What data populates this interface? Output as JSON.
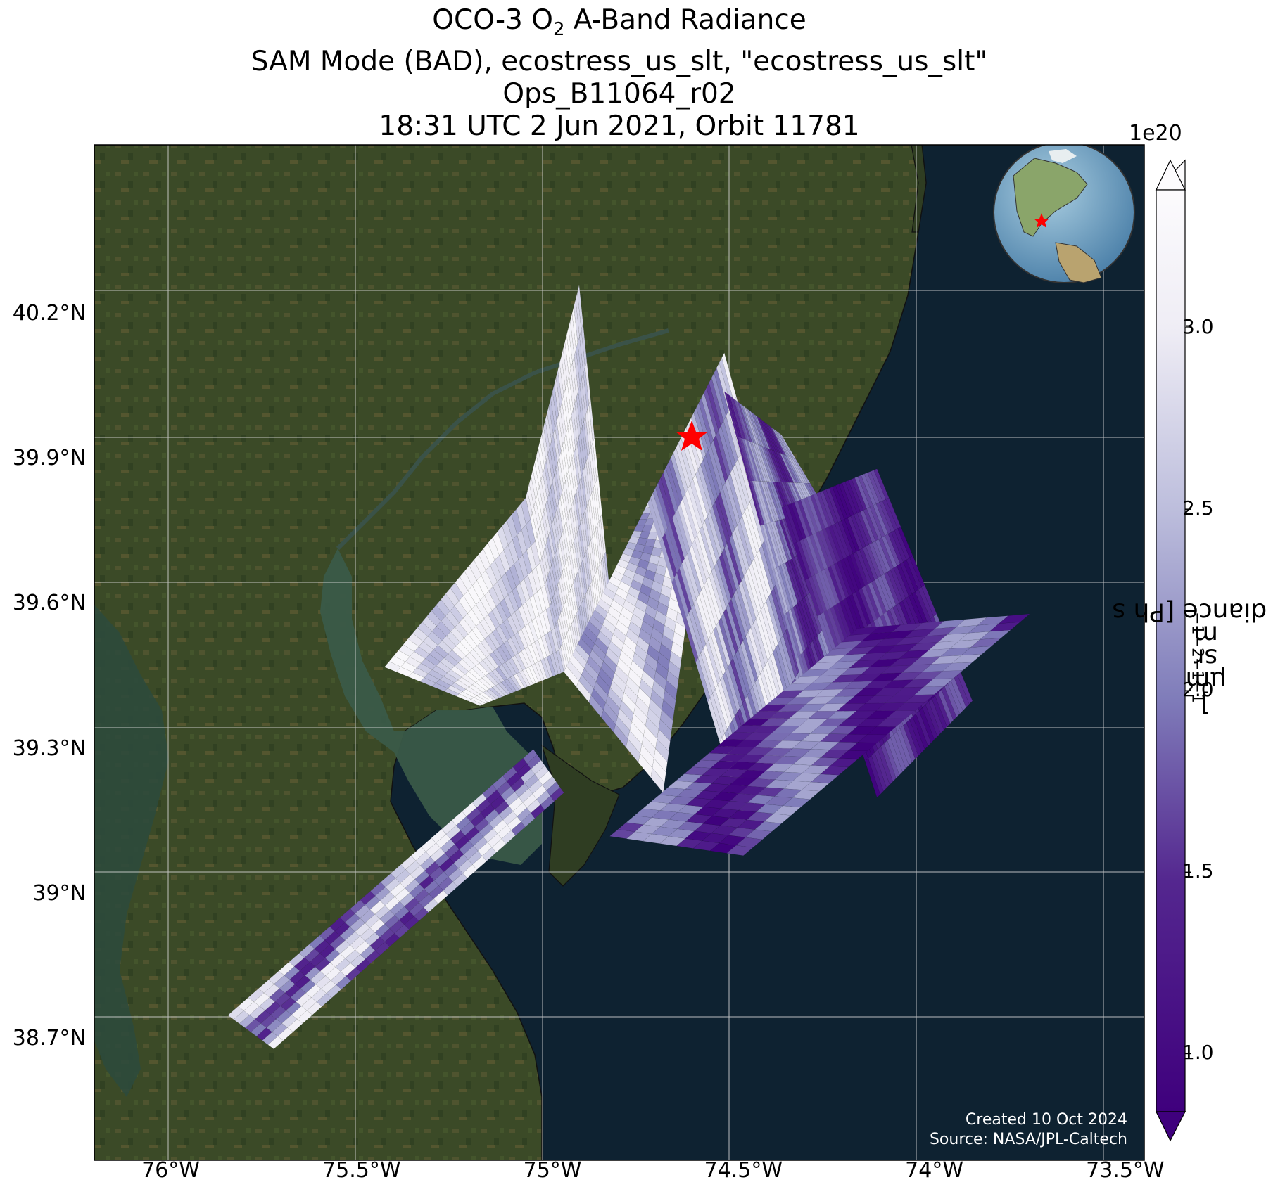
{
  "title": {
    "line1_pre": "OCO-3 O",
    "line1_sub": "2",
    "line1_post": " A-Band Radiance",
    "line2": "SAM Mode (BAD), ecostress_us_slt, \"ecostress_us_slt\"",
    "line3": "Ops_B11064_r02",
    "line4": "18:31 UTC 2 Jun 2021, Orbit 11781"
  },
  "map": {
    "lon_range": [
      -76.2,
      -73.45
    ],
    "lat_range": [
      38.45,
      40.55
    ],
    "lat_ticks": [
      {
        "value": 40.2,
        "label": "40.2°N"
      },
      {
        "value": 39.9,
        "label": "39.9°N"
      },
      {
        "value": 39.6,
        "label": "39.6°N"
      },
      {
        "value": 39.3,
        "label": "39.3°N"
      },
      {
        "value": 39.0,
        "label": "39°N"
      },
      {
        "value": 38.7,
        "label": "38.7°N"
      }
    ],
    "lon_ticks": [
      {
        "value": -76.0,
        "label": "76°W"
      },
      {
        "value": -75.5,
        "label": "75.5°W"
      },
      {
        "value": -75.0,
        "label": "75°W"
      },
      {
        "value": -74.5,
        "label": "74.5°W"
      },
      {
        "value": -74.0,
        "label": "74°W"
      },
      {
        "value": -73.5,
        "label": "73.5°W"
      }
    ],
    "target": {
      "lon": -74.6,
      "lat": 39.91,
      "marker": "red-star"
    },
    "grid": true,
    "inset_globe": "top-right"
  },
  "colorbar": {
    "exponent_label": "1e20",
    "ticks": [
      {
        "value": 1.0,
        "label": "1.0"
      },
      {
        "value": 1.5,
        "label": "1.5"
      },
      {
        "value": 2.0,
        "label": "2.0"
      },
      {
        "value": 2.5,
        "label": "2.5"
      },
      {
        "value": 3.0,
        "label": "3.0"
      }
    ],
    "range": [
      0.84,
      3.38
    ],
    "extend": "both",
    "colormap": "Purples_r",
    "label_pre": "Radiance [Ph s",
    "label_sup1": "−1",
    "label_mid1": " m",
    "label_sup2": "−2",
    "label_mid2": " sr",
    "label_sup3": "−1",
    "label_mid3": "μm",
    "label_sup4": "−1",
    "label_post": "]"
  },
  "credits": {
    "created": "Created 10 Oct 2024",
    "source": "Source: NASA/JPL-Caltech"
  },
  "colors": {
    "ocean": "#0e2231",
    "land": "#3b4a27",
    "bay": "#3a5a48",
    "low": "#3f007d",
    "high": "#fcfbfd",
    "target_star": "#ff0000"
  },
  "chart_data": {
    "type": "heatmap",
    "units": "Radiance [Ph s−1 m−2 sr−1μm−1] ×1e20",
    "swaths": [
      {
        "corners": [
          [
            -75.07,
            39.82
          ],
          [
            -74.93,
            40.26
          ],
          [
            -74.85,
            39.63
          ],
          [
            -74.97,
            39.46
          ]
        ],
        "value_range": [
          2.5,
          3.3
        ]
      },
      {
        "corners": [
          [
            -75.44,
            39.47
          ],
          [
            -75.07,
            39.82
          ],
          [
            -74.97,
            39.46
          ],
          [
            -75.19,
            39.39
          ]
        ],
        "value_range": [
          2.4,
          3.3
        ]
      },
      {
        "corners": [
          [
            -74.97,
            39.46
          ],
          [
            -74.75,
            39.81
          ],
          [
            -74.6,
            39.85
          ],
          [
            -74.71,
            39.21
          ]
        ],
        "value_range": [
          2.0,
          3.2
        ]
      },
      {
        "corners": [
          [
            -74.75,
            39.81
          ],
          [
            -74.55,
            40.12
          ],
          [
            -74.3,
            39.4
          ],
          [
            -74.5,
            39.15
          ]
        ],
        "value_range": [
          1.6,
          3.1
        ]
      },
      {
        "corners": [
          [
            -74.55,
            40.04
          ],
          [
            -74.4,
            39.95
          ],
          [
            -74.1,
            39.55
          ],
          [
            -74.3,
            39.3
          ]
        ],
        "value_range": [
          1.2,
          2.4
        ]
      },
      {
        "corners": [
          [
            -74.4,
            39.8
          ],
          [
            -74.15,
            39.88
          ],
          [
            -73.9,
            39.4
          ],
          [
            -74.15,
            39.2
          ]
        ],
        "value_range": [
          0.9,
          1.8
        ]
      },
      {
        "corners": [
          [
            -74.85,
            39.12
          ],
          [
            -74.2,
            39.55
          ],
          [
            -73.75,
            39.58
          ],
          [
            -74.5,
            39.08
          ]
        ],
        "value_range": [
          0.85,
          2.3
        ]
      },
      {
        "corners": [
          [
            -75.85,
            38.75
          ],
          [
            -75.05,
            39.3
          ],
          [
            -74.97,
            39.21
          ],
          [
            -75.73,
            38.68
          ]
        ],
        "value_range": [
          1.3,
          3.1
        ]
      }
    ]
  }
}
